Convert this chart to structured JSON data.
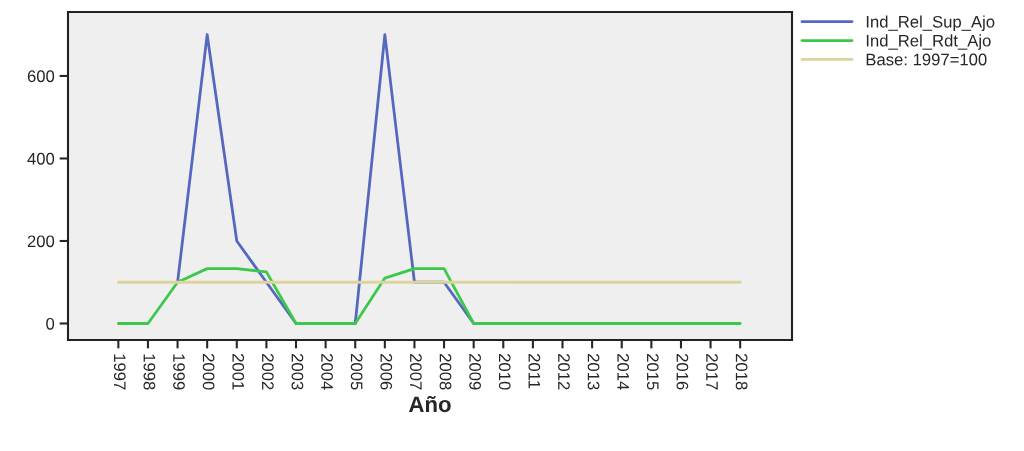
{
  "chart_data": {
    "type": "line",
    "xlabel": "Año",
    "categories": [
      "1997",
      "1998",
      "1999",
      "2000",
      "2001",
      "2002",
      "2003",
      "2004",
      "2005",
      "2006",
      "2007",
      "2008",
      "2009",
      "2010",
      "2011",
      "2012",
      "2013",
      "2014",
      "2015",
      "2016",
      "2017",
      "2018"
    ],
    "series": [
      {
        "name": "Ind_Rel_Sup_Ajo",
        "color": "#5468c0",
        "values": [
          null,
          null,
          100,
          700,
          200,
          100,
          0,
          null,
          0,
          700,
          100,
          100,
          0,
          null,
          null,
          null,
          null,
          null,
          null,
          null,
          null,
          null
        ]
      },
      {
        "name": "Ind_Rel_Rdt_Ajo",
        "color": "#3cc84a",
        "values": [
          0,
          0,
          100,
          133,
          133,
          125,
          0,
          0,
          0,
          110,
          133,
          133,
          0,
          0,
          0,
          0,
          0,
          0,
          0,
          0,
          0,
          0
        ]
      },
      {
        "name": "Base: 1997=100",
        "color": "#dcd49c",
        "values": [
          100,
          100,
          100,
          100,
          100,
          100,
          100,
          100,
          100,
          100,
          100,
          100,
          100,
          100,
          100,
          100,
          100,
          100,
          100,
          100,
          100,
          100
        ]
      }
    ],
    "ylim": [
      -40,
      755
    ],
    "yticks": [
      0,
      200,
      400,
      600
    ],
    "grid": false,
    "legend": "right",
    "marker": "none",
    "line_style": "solid"
  }
}
